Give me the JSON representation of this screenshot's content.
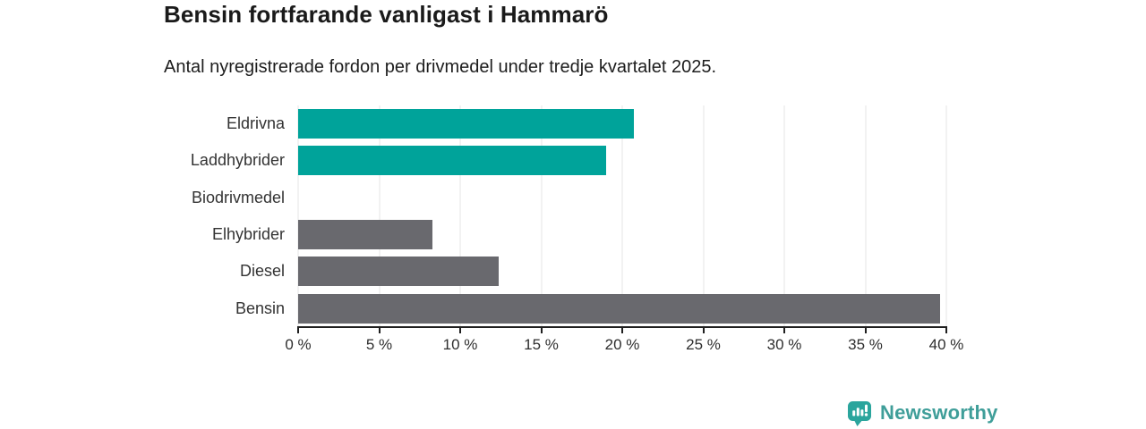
{
  "header": {
    "title": "Bensin fortfarande vanligast i Hammarö",
    "subtitle": "Antal nyregistrerade fordon per drivmedel under tredje kvartalet 2025."
  },
  "chart_data": {
    "type": "bar",
    "orientation": "horizontal",
    "title": "Bensin fortfarande vanligast i Hammarö",
    "subtitle": "Antal nyregistrerade fordon per drivmedel under tredje kvartalet 2025.",
    "categories": [
      "Eldrivna",
      "Laddhybrider",
      "Biodrivmedel",
      "Elhybrider",
      "Diesel",
      "Bensin"
    ],
    "values": [
      20.7,
      19.0,
      0,
      8.3,
      12.4,
      39.6
    ],
    "unit": "%",
    "xlim": [
      0,
      40
    ],
    "x_ticks": [
      "0 %",
      "5 %",
      "10 %",
      "15 %",
      "20 %",
      "25 %",
      "30 %",
      "35 %",
      "40 %"
    ],
    "grid": true,
    "legend": false,
    "bar_colors": [
      "#00a39a",
      "#00a39a",
      "#00a39a",
      "#69696e",
      "#69696e",
      "#69696e"
    ]
  },
  "colors": {
    "teal_bar": "#00a39a",
    "gray_bar": "#69696e",
    "gridline": "#e4e4e4",
    "axis": "#1f1f1f",
    "text_dark": "#1a1a1a",
    "label_gray": "#333333",
    "logo_icon": "#2ba59d",
    "logo_text": "#3f9e99"
  },
  "branding": {
    "logo_text": "Newsworthy",
    "logo_icon": "bar-chart-speech-bubble-icon"
  }
}
